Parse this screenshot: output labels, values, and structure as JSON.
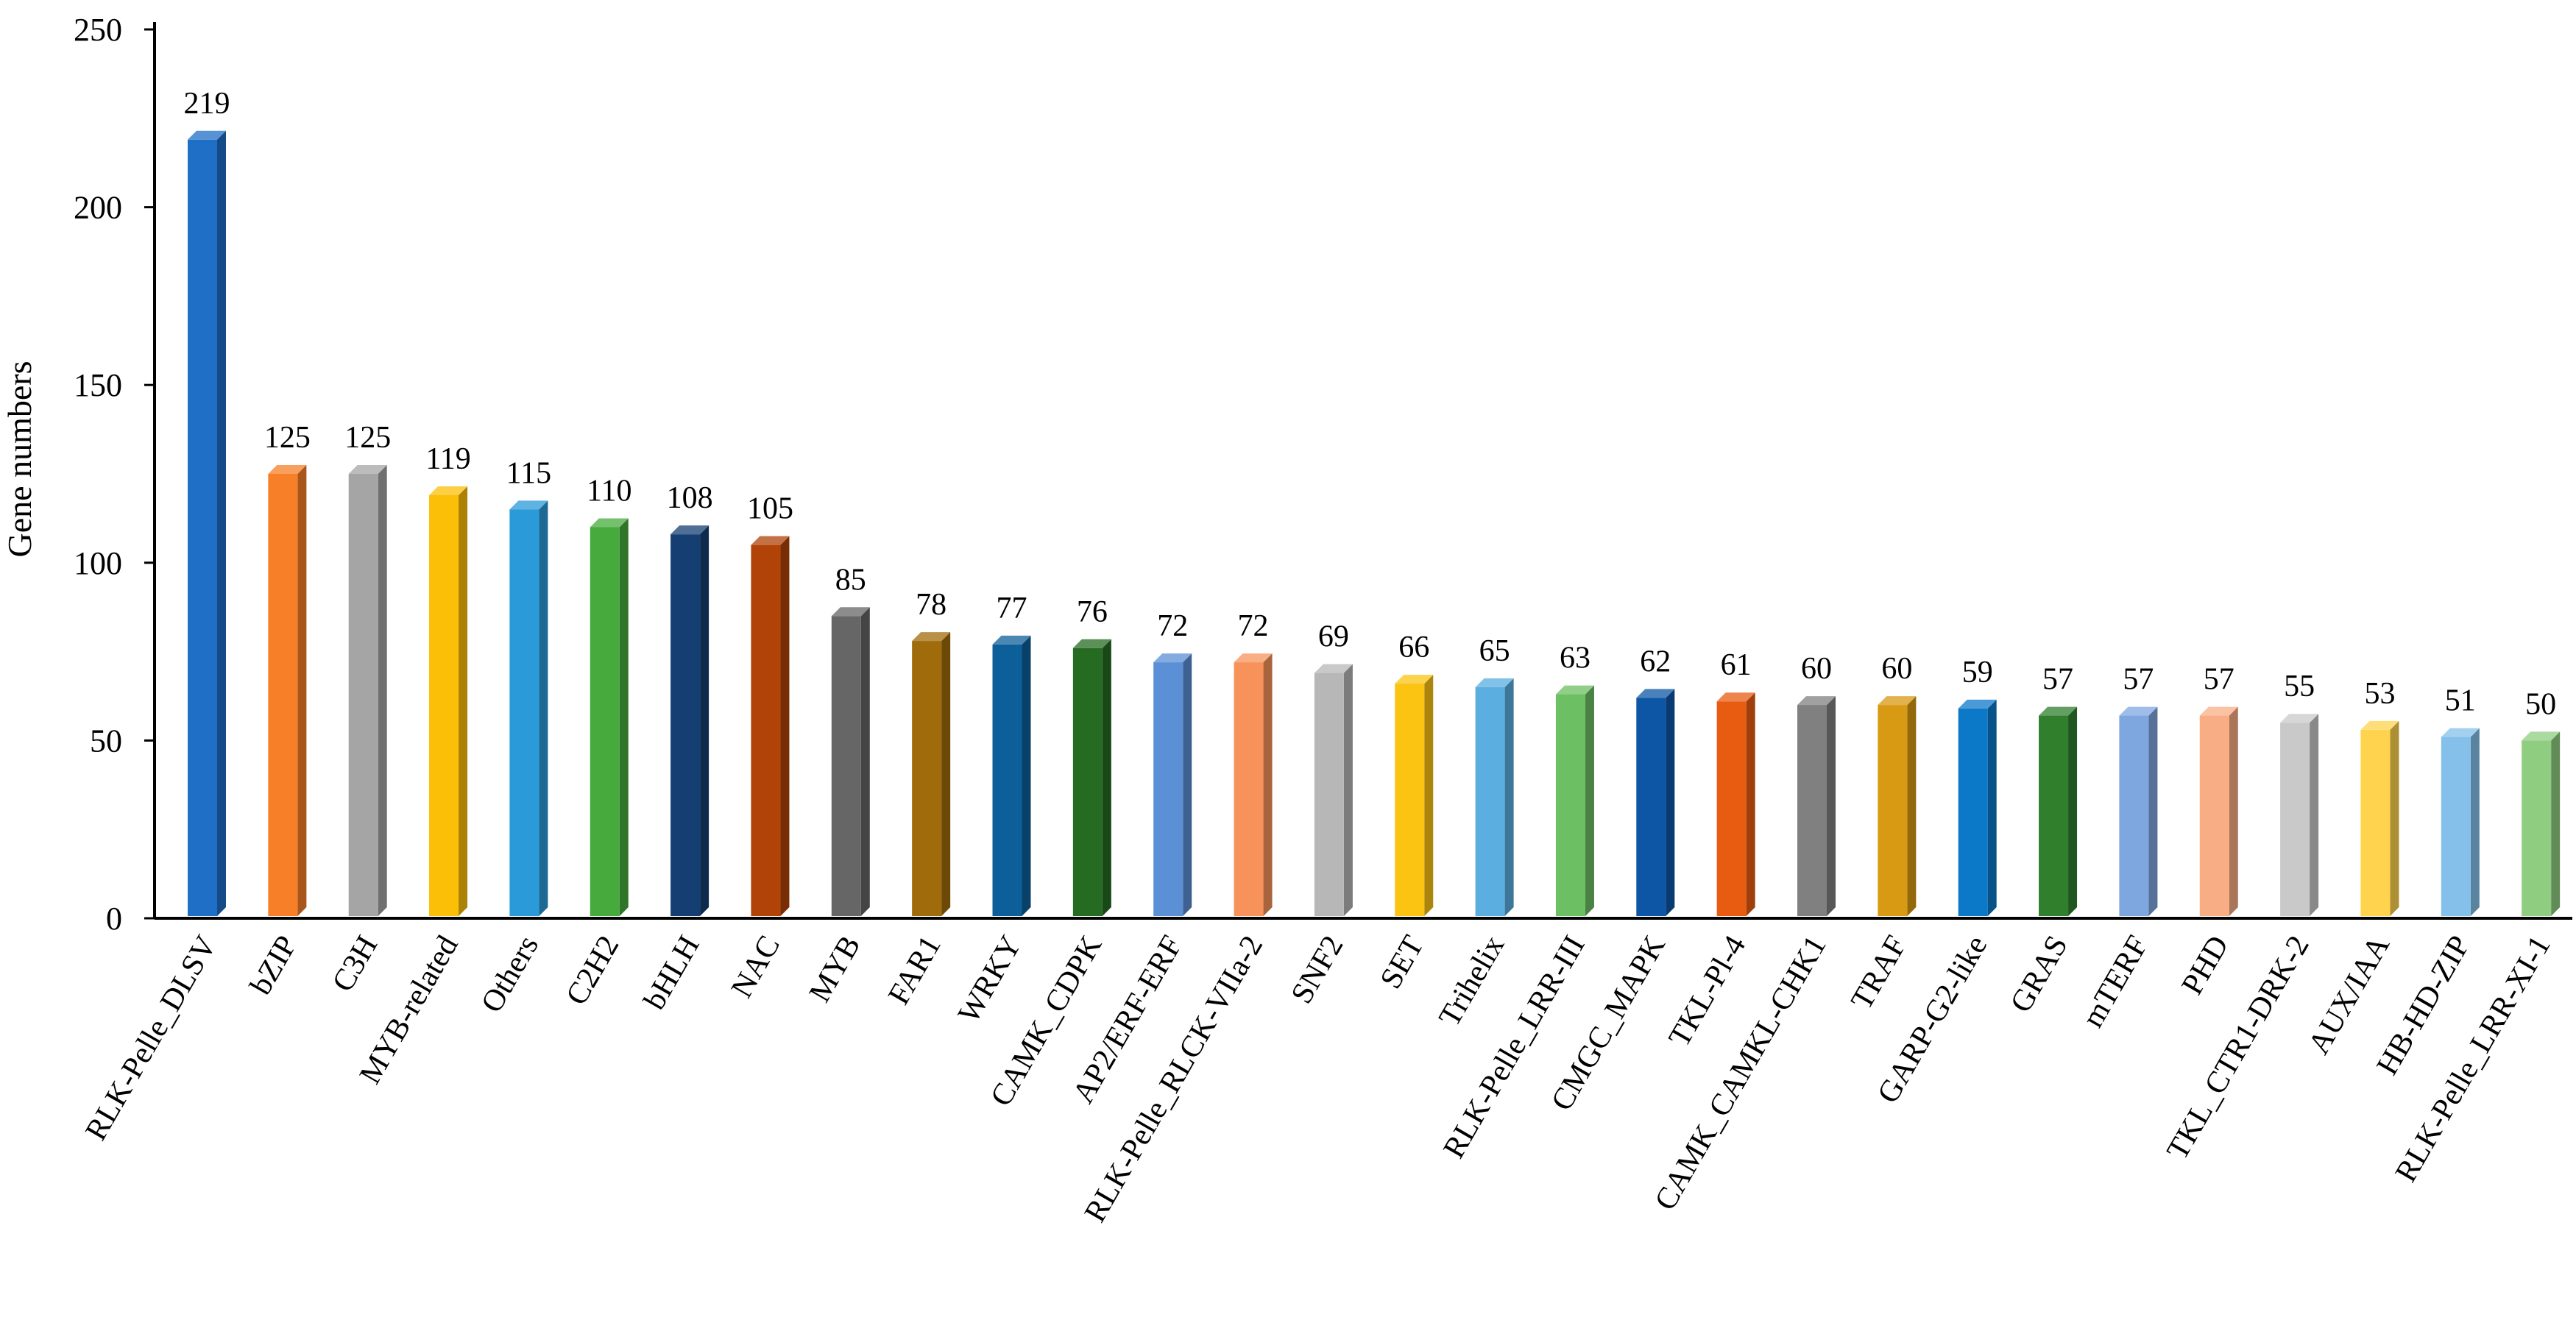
{
  "chart_data": {
    "type": "bar",
    "title": "",
    "xlabel": "",
    "ylabel": "Gene numbers",
    "ylim": [
      0,
      250
    ],
    "yticks": [
      0,
      50,
      100,
      150,
      200,
      250
    ],
    "grid": false,
    "legend": "none",
    "style": "3d-columns",
    "categories": [
      "RLK-Pelle_DLSV",
      "bZIP",
      "C3H",
      "MYB-related",
      "Others",
      "C2H2",
      "bHLH",
      "NAC",
      "MYB",
      "FAR1",
      "WRKY",
      "CAMK_CDPK",
      "AP2/ERF-ERF",
      "RLK-Pelle_RLCK-VIIa-2",
      "SNF2",
      "SET",
      "Trihelix",
      "RLK-Pelle_LRR-III",
      "CMGC_MAPK",
      "TKL-Pl-4",
      "CAMK_CAMKL-CHK1",
      "TRAF",
      "GARP-G2-like",
      "GRAS",
      "mTERF",
      "PHD",
      "TKL_CTR1-DRK-2",
      "AUX/IAA",
      "HB-HD-ZIP",
      "RLK-Pelle_LRR-XI-1"
    ],
    "values": [
      219,
      125,
      125,
      119,
      115,
      110,
      108,
      105,
      85,
      78,
      77,
      76,
      72,
      72,
      69,
      66,
      65,
      63,
      62,
      61,
      60,
      60,
      59,
      57,
      57,
      57,
      55,
      53,
      51,
      50
    ],
    "value_labels": [
      "219",
      "125",
      "125",
      "119",
      "115",
      "110",
      "108",
      "105",
      "85",
      "78",
      "77",
      "76",
      "72",
      "72",
      "69",
      "66",
      "65",
      "63",
      "62",
      "61",
      "60",
      "60",
      "59",
      "57",
      "57",
      "57",
      "55",
      "53",
      "51",
      "50"
    ],
    "colors": [
      "#1f6fc6",
      "#f77f27",
      "#a5a5a5",
      "#fbbf07",
      "#2a9ad9",
      "#46ab3c",
      "#153f73",
      "#b14208",
      "#666666",
      "#a06b0a",
      "#0d5f99",
      "#256b21",
      "#5b8fd6",
      "#f7935a",
      "#b7b7b7",
      "#fbc412",
      "#5aaee0",
      "#6cbf62",
      "#0d56a6",
      "#e85c12",
      "#808080",
      "#d89a12",
      "#0c78c8",
      "#2f7f2d",
      "#7ea7e0",
      "#f9ad84",
      "#c9c9c9",
      "#ffd34d",
      "#84c0ea",
      "#8fce80"
    ]
  }
}
